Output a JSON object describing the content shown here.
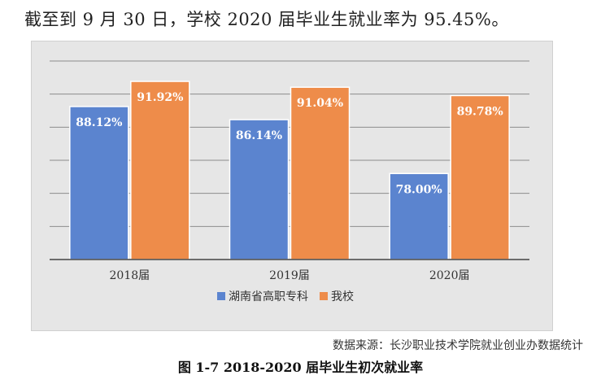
{
  "intro_text": "截至到 9 月 30 日，学校 2020 届毕业生就业率为 95.45%。",
  "source_text": "数据来源：长沙职业技术学院就业创业办数据统计",
  "caption": "图 1-7 2018-2020 届毕业生初次就业率",
  "chart_data": {
    "type": "bar",
    "categories": [
      "2018届",
      "2019届",
      "2020届"
    ],
    "series": [
      {
        "name": "湖南省高职专科",
        "values": [
          88.12,
          86.14,
          78.0
        ],
        "labels": [
          "88.12%",
          "86.14%",
          "78.00%"
        ],
        "color": "#5b84cf"
      },
      {
        "name": "我校",
        "values": [
          91.92,
          91.04,
          89.78
        ],
        "labels": [
          "91.92%",
          "91.04%",
          "89.78%"
        ],
        "color": "#ee8c4a"
      }
    ],
    "ylim": [
      65,
      95
    ],
    "grid": true,
    "legend": "bottom",
    "title": "",
    "xlabel": "",
    "ylabel": ""
  }
}
